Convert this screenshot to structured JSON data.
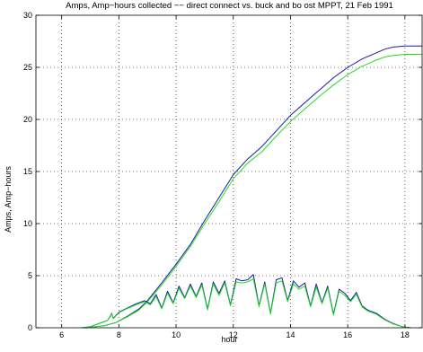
{
  "chart_data": {
    "type": "line",
    "title": "Amps, Amp−hours collected −− direct connect vs. buck and bo ost MPPT, 21 Feb 1991",
    "xlabel": "hour",
    "ylabel": "Amps, Amp−hours",
    "xlim": [
      5.1,
      18.6
    ],
    "ylim": [
      0,
      30
    ],
    "xticks": [
      6,
      8,
      10,
      12,
      14,
      16,
      18
    ],
    "yticks": [
      0,
      5,
      10,
      15,
      20,
      25,
      30
    ],
    "grid": "dotted",
    "series_colors": {
      "blue": "#1a1aa8",
      "green": "#22dd22"
    },
    "series": [
      {
        "role": "amp-hours-blue",
        "color": "#1a1aa8",
        "x": [
          6.8,
          7.0,
          7.5,
          7.9,
          8.3,
          8.7,
          9.0,
          9.5,
          10.0,
          10.5,
          11.0,
          11.5,
          12.0,
          12.5,
          13.0,
          13.5,
          14.0,
          14.5,
          15.0,
          15.5,
          16.0,
          16.5,
          17.0,
          17.3,
          17.6,
          18.0,
          18.6
        ],
        "y": [
          0.0,
          0.05,
          0.2,
          0.5,
          1.1,
          1.8,
          2.6,
          4.3,
          6.1,
          8.0,
          10.3,
          12.5,
          14.7,
          16.2,
          17.4,
          18.9,
          20.4,
          21.6,
          22.8,
          24.0,
          25.0,
          25.8,
          26.4,
          26.75,
          26.95,
          27.05,
          27.05
        ]
      },
      {
        "role": "amp-hours-green",
        "color": "#22dd22",
        "x": [
          6.8,
          7.0,
          7.5,
          7.9,
          8.3,
          8.7,
          9.0,
          9.5,
          10.0,
          10.5,
          11.0,
          11.5,
          12.0,
          12.5,
          13.0,
          13.5,
          14.0,
          14.5,
          15.0,
          15.5,
          16.0,
          16.5,
          17.0,
          17.3,
          17.6,
          18.0,
          18.6
        ],
        "y": [
          0.0,
          0.05,
          0.2,
          0.5,
          1.05,
          1.7,
          2.5,
          4.1,
          5.9,
          7.8,
          10.0,
          12.1,
          14.3,
          15.8,
          16.9,
          18.4,
          19.8,
          21.0,
          22.2,
          23.3,
          24.3,
          25.1,
          25.7,
          26.0,
          26.15,
          26.25,
          26.25
        ]
      },
      {
        "role": "amps-blue",
        "color": "#1a1aa8",
        "x": [
          6.7,
          7.0,
          7.3,
          7.6,
          7.7,
          7.75,
          7.8,
          8.0,
          8.3,
          8.6,
          8.9,
          9.1,
          9.3,
          9.5,
          9.7,
          9.9,
          10.1,
          10.3,
          10.5,
          10.7,
          10.9,
          11.1,
          11.3,
          11.5,
          11.7,
          11.9,
          12.1,
          12.3,
          12.5,
          12.7,
          12.9,
          13.1,
          13.3,
          13.5,
          13.7,
          13.9,
          14.1,
          14.3,
          14.5,
          14.7,
          14.9,
          15.1,
          15.3,
          15.5,
          15.7,
          15.9,
          16.1,
          16.3,
          16.5,
          16.7,
          17.0,
          17.3,
          17.6,
          17.9,
          18.2
        ],
        "y": [
          0.0,
          0.1,
          0.4,
          0.7,
          1.1,
          1.4,
          0.9,
          1.5,
          1.9,
          2.3,
          2.6,
          2.3,
          3.2,
          1.9,
          3.5,
          2.4,
          4.0,
          2.9,
          4.2,
          3.0,
          4.3,
          1.8,
          4.4,
          3.3,
          4.5,
          2.2,
          4.7,
          4.5,
          4.6,
          5.1,
          2.1,
          4.4,
          1.4,
          4.6,
          4.8,
          2.6,
          4.5,
          3.9,
          4.3,
          2.1,
          4.2,
          2.4,
          4.0,
          1.3,
          3.7,
          3.3,
          2.6,
          3.4,
          2.1,
          1.7,
          1.4,
          0.8,
          0.4,
          0.1,
          0.0
        ]
      },
      {
        "role": "amps-green",
        "color": "#22dd22",
        "x": [
          6.7,
          7.0,
          7.3,
          7.6,
          7.7,
          7.75,
          7.8,
          8.0,
          8.3,
          8.6,
          8.9,
          9.1,
          9.3,
          9.5,
          9.7,
          9.9,
          10.1,
          10.3,
          10.5,
          10.7,
          10.9,
          11.1,
          11.3,
          11.5,
          11.7,
          11.9,
          12.1,
          12.3,
          12.5,
          12.7,
          12.9,
          13.1,
          13.3,
          13.5,
          13.7,
          13.9,
          14.1,
          14.3,
          14.5,
          14.7,
          14.9,
          15.1,
          15.3,
          15.5,
          15.7,
          15.9,
          16.1,
          16.3,
          16.5,
          16.7,
          17.0,
          17.3,
          17.6,
          17.9,
          18.2
        ],
        "y": [
          0.0,
          0.1,
          0.4,
          0.7,
          1.05,
          1.35,
          0.85,
          1.45,
          1.85,
          2.2,
          2.5,
          2.2,
          3.0,
          1.8,
          3.3,
          2.3,
          3.8,
          2.8,
          4.0,
          2.9,
          4.1,
          1.7,
          4.2,
          3.1,
          4.3,
          2.1,
          4.4,
          4.3,
          4.4,
          4.7,
          2.0,
          4.2,
          1.3,
          4.3,
          4.5,
          2.5,
          4.2,
          3.7,
          4.0,
          2.0,
          3.9,
          2.3,
          3.8,
          1.2,
          3.5,
          3.1,
          2.5,
          3.2,
          2.0,
          1.6,
          1.3,
          0.75,
          0.35,
          0.1,
          0.0
        ]
      }
    ]
  }
}
